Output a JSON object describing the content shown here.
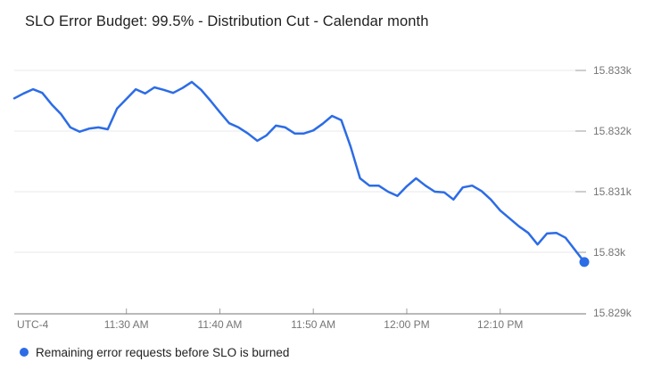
{
  "chart_data": {
    "type": "line",
    "title": "SLO Error Budget: 99.5% - Distribution Cut - Calendar month",
    "utc_label": "UTC-4",
    "x_start_time": "11:18 AM",
    "x_interval_minutes": 1,
    "x_ticks": [
      {
        "label": "11:30 AM",
        "minutes_from_start": 12
      },
      {
        "label": "11:40 AM",
        "minutes_from_start": 22
      },
      {
        "label": "11:50 AM",
        "minutes_from_start": 32
      },
      {
        "label": "12:00 PM",
        "minutes_from_start": 42
      },
      {
        "label": "12:10 PM",
        "minutes_from_start": 52
      }
    ],
    "y_ticks": [
      {
        "label": "15.833k",
        "value": 15833
      },
      {
        "label": "15.832k",
        "value": 15832
      },
      {
        "label": "15.831k",
        "value": 15831
      },
      {
        "label": "15.83k",
        "value": 15830
      },
      {
        "label": "15.829k",
        "value": 15829
      }
    ],
    "ylim": [
      15829,
      15833
    ],
    "grid": true,
    "y_axis_side": "right",
    "legend_position": "bottom-left",
    "series": [
      {
        "name": "Remaining error requests before SLO is burned",
        "color": "#2c6ce6",
        "end_marker": true,
        "values": [
          15832.54,
          15832.62,
          15832.69,
          15832.63,
          15832.44,
          15832.28,
          15832.06,
          15831.99,
          15832.04,
          15832.06,
          15832.03,
          15832.37,
          15832.53,
          15832.69,
          15832.62,
          15832.72,
          15832.68,
          15832.63,
          15832.71,
          15832.81,
          15832.68,
          15832.5,
          15832.31,
          15832.13,
          15832.06,
          15831.96,
          15831.84,
          15831.93,
          15832.09,
          15832.06,
          15831.96,
          15831.96,
          15832.01,
          15832.12,
          15832.25,
          15832.18,
          15831.74,
          15831.22,
          15831.1,
          15831.1,
          15831.0,
          15830.93,
          15831.09,
          15831.22,
          15831.1,
          15831.0,
          15830.99,
          15830.87,
          15831.07,
          15831.1,
          15831.01,
          15830.87,
          15830.69,
          15830.56,
          15830.43,
          15830.32,
          15830.13,
          15830.31,
          15830.32,
          15830.24,
          15830.04,
          15829.84
        ]
      }
    ]
  },
  "colors": {
    "accent": "#2c6ce6",
    "gridline": "#e8e8e8",
    "axis_line": "#757575",
    "tick_mark": "#9e9e9e",
    "title_text": "#212121",
    "axis_text": "#757575"
  }
}
